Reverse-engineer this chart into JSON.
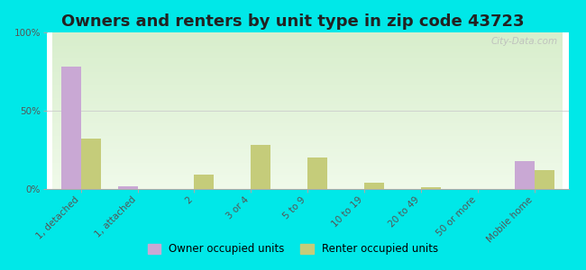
{
  "title": "Owners and renters by unit type in zip code 43723",
  "categories": [
    "1, detached",
    "1, attached",
    "2",
    "3 or 4",
    "5 to 9",
    "10 to 19",
    "20 to 49",
    "50 or more",
    "Mobile home"
  ],
  "owner_values": [
    78,
    2,
    0,
    0,
    0,
    0,
    0,
    0,
    18
  ],
  "renter_values": [
    32,
    0,
    9,
    28,
    20,
    4,
    1,
    0,
    12
  ],
  "owner_color": "#c9a8d4",
  "renter_color": "#c5cc7a",
  "outer_bg": "#00e8e8",
  "plot_bg_color": "#eef7e8",
  "ylim": [
    0,
    100
  ],
  "yticks": [
    0,
    50,
    100
  ],
  "ytick_labels": [
    "0%",
    "50%",
    "100%"
  ],
  "bar_width": 0.35,
  "legend_owner": "Owner occupied units",
  "legend_renter": "Renter occupied units",
  "title_fontsize": 13,
  "tick_fontsize": 7.5,
  "watermark": "City-Data.com"
}
